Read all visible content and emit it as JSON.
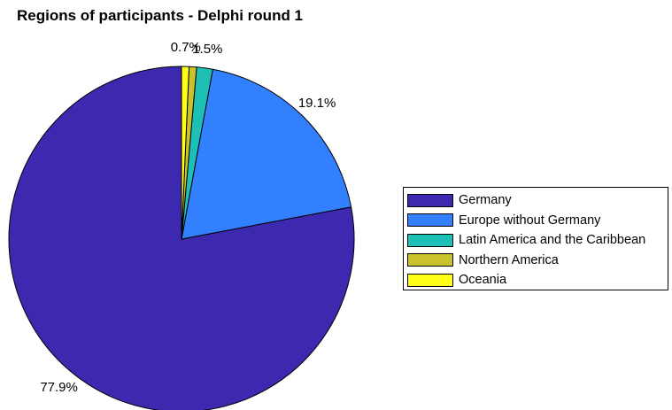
{
  "chart_data": {
    "type": "pie",
    "title": "Regions of participants - Delphi round 1",
    "slices": [
      {
        "label": "Germany",
        "value": 77.9,
        "display": "77.9%",
        "color": "#3d28b0"
      },
      {
        "label": "Europe without Germany",
        "value": 19.1,
        "display": "19.1%",
        "color": "#3380ff"
      },
      {
        "label": "Latin America and the Caribbean",
        "value": 1.5,
        "display": "1.5%",
        "color": "#1ebfb7"
      },
      {
        "label": "Northern America",
        "value": 0.7,
        "display": "",
        "color": "#c9c22a"
      },
      {
        "label": "Oceania",
        "value": 0.7,
        "display": "0.7%",
        "color": "#ffff17"
      }
    ],
    "legend_position": "right",
    "start": "top",
    "direction": "counterclockwise"
  }
}
